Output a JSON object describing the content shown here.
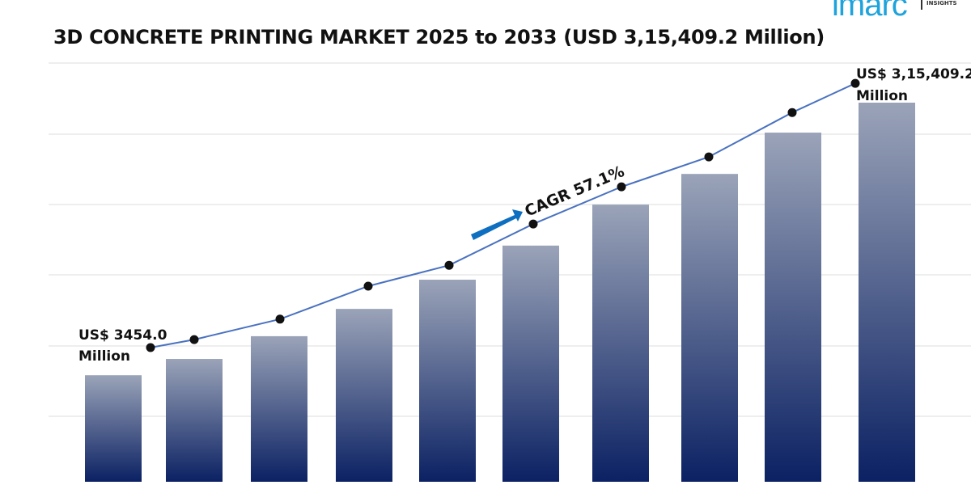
{
  "logo": {
    "brand": "imarc",
    "sub": "INSIGHTS",
    "color": "#1ea3dc"
  },
  "chart_data": {
    "type": "bar",
    "title": "3D CONCRETE PRINTING MARKET 2025 to 2033 (USD 3,15,409.2 Million)",
    "xlabel": "",
    "ylabel": "",
    "grid": true,
    "legend": "none",
    "series": [
      {
        "kind": "bar",
        "values": [
          28.1,
          32.4,
          38.4,
          45.6,
          53.3,
          62.3,
          73.1,
          81.2,
          92.1,
          100
        ],
        "color_top": "#9aa3b8",
        "color_bottom": "#0b2163"
      },
      {
        "kind": "line",
        "values": [
          35.4,
          37.5,
          42.9,
          51.6,
          57.1,
          68.0,
          77.8,
          85.7,
          97.4,
          105.1
        ],
        "color": "#4a72c0"
      }
    ],
    "annotations": {
      "start_label": [
        "US$ 3454.0",
        "Million"
      ],
      "end_label": [
        "US$ 3,15,409.2",
        "Million"
      ],
      "cagr": "CAGR 57.1%",
      "arrow_color": "#0e6fc1"
    }
  }
}
